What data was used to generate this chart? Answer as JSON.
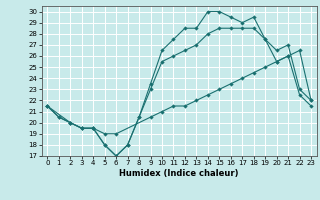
{
  "xlabel": "Humidex (Indice chaleur)",
  "xlim": [
    -0.5,
    23.5
  ],
  "ylim": [
    17,
    30.5
  ],
  "xticks": [
    0,
    1,
    2,
    3,
    4,
    5,
    6,
    7,
    8,
    9,
    10,
    11,
    12,
    13,
    14,
    15,
    16,
    17,
    18,
    19,
    20,
    21,
    22,
    23
  ],
  "yticks": [
    17,
    18,
    19,
    20,
    21,
    22,
    23,
    24,
    25,
    26,
    27,
    28,
    29,
    30
  ],
  "bg_color": "#c8eaea",
  "line_color": "#1a7070",
  "grid_color": "#ffffff",
  "line1_x": [
    0,
    1,
    2,
    3,
    4,
    5,
    6,
    7,
    8,
    9,
    10,
    11,
    12,
    13,
    14,
    15,
    16,
    17,
    18,
    19,
    20,
    21,
    22,
    23
  ],
  "line1_y": [
    21.5,
    20.5,
    20.0,
    19.5,
    19.5,
    18.0,
    17.0,
    18.0,
    20.5,
    23.5,
    26.5,
    27.5,
    28.5,
    28.5,
    30.0,
    30.0,
    29.5,
    29.0,
    29.5,
    27.5,
    26.5,
    27.0,
    23.0,
    22.0
  ],
  "line2_x": [
    0,
    1,
    2,
    3,
    4,
    5,
    6,
    7,
    8,
    9,
    10,
    11,
    12,
    13,
    14,
    15,
    16,
    17,
    18,
    19,
    20,
    21,
    22,
    23
  ],
  "line2_y": [
    21.5,
    20.5,
    20.0,
    19.5,
    19.5,
    18.0,
    17.0,
    18.0,
    20.5,
    23.0,
    25.5,
    26.0,
    26.5,
    27.0,
    28.0,
    28.5,
    28.5,
    28.5,
    28.5,
    27.5,
    25.5,
    26.0,
    22.5,
    21.5
  ],
  "line3_x": [
    0,
    2,
    3,
    4,
    5,
    6,
    9,
    10,
    11,
    12,
    13,
    14,
    15,
    16,
    17,
    18,
    19,
    20,
    21,
    22,
    23
  ],
  "line3_y": [
    21.5,
    20.0,
    19.5,
    19.5,
    19.0,
    19.0,
    20.5,
    21.0,
    21.5,
    21.5,
    22.0,
    22.5,
    23.0,
    23.5,
    24.0,
    24.5,
    25.0,
    25.5,
    26.0,
    26.5,
    22.0
  ]
}
